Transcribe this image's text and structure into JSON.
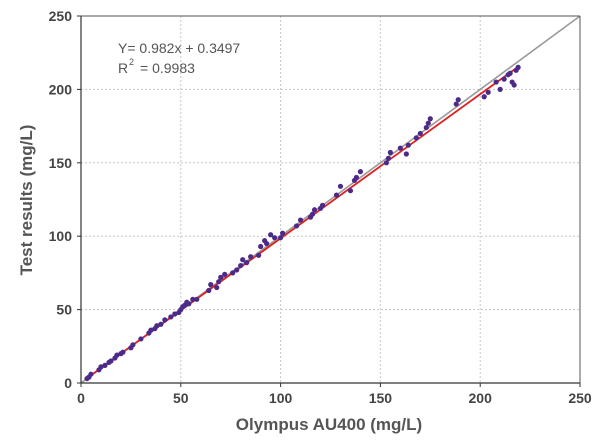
{
  "chart_data": {
    "type": "scatter",
    "xlabel": "Olympus AU400 (mg/L)",
    "ylabel": "Test results (mg/L)",
    "xlim": [
      0,
      250
    ],
    "ylim": [
      0,
      250
    ],
    "xticks": [
      0,
      50,
      100,
      150,
      200,
      250
    ],
    "yticks": [
      0,
      50,
      100,
      150,
      200,
      250
    ],
    "grid": true,
    "equation": "Y= 0.982x + 0.3497",
    "r2_label": "R",
    "r2_sup": "2",
    "r2_value": "= 0.9983",
    "regression": {
      "slope": 0.982,
      "intercept": 0.3497,
      "color": "#e02020"
    },
    "identity_line": {
      "slope": 1,
      "intercept": 0,
      "color": "#999999"
    },
    "point_color": "#4b2a88",
    "x": [
      3,
      4,
      5,
      9,
      10,
      12,
      14,
      15,
      17,
      18,
      20,
      21,
      25,
      26,
      30,
      34,
      35,
      37,
      38,
      40,
      42,
      45,
      47,
      49,
      50,
      51,
      52,
      53,
      54,
      56,
      58,
      64,
      65,
      68,
      69,
      70,
      72,
      76,
      78,
      80,
      81,
      83,
      85,
      89,
      90,
      92,
      93,
      95,
      97,
      100,
      101,
      108,
      110,
      115,
      116,
      117,
      120,
      121,
      128,
      130,
      135,
      137,
      138,
      140,
      153,
      154,
      155,
      160,
      163,
      164,
      168,
      170,
      173,
      174,
      175,
      188,
      189,
      202,
      204,
      208,
      210,
      212,
      214,
      215,
      216,
      217,
      218,
      219
    ],
    "y": [
      3,
      4,
      6,
      9,
      11,
      12,
      14,
      15,
      17,
      19,
      20,
      21,
      24,
      26,
      30,
      34,
      36,
      37,
      39,
      40,
      43,
      45,
      47,
      48,
      50,
      52,
      53,
      55,
      54,
      57,
      57,
      63,
      67,
      65,
      69,
      72,
      74,
      75,
      77,
      80,
      84,
      82,
      86,
      87,
      93,
      97,
      95,
      101,
      99,
      99,
      102,
      107,
      111,
      113,
      115,
      118,
      119,
      121,
      128,
      134,
      131,
      138,
      140,
      144,
      150,
      153,
      157,
      160,
      156,
      162,
      167,
      170,
      174,
      177,
      180,
      190,
      193,
      195,
      198,
      205,
      200,
      207,
      210,
      211,
      205,
      203,
      213,
      215
    ]
  }
}
